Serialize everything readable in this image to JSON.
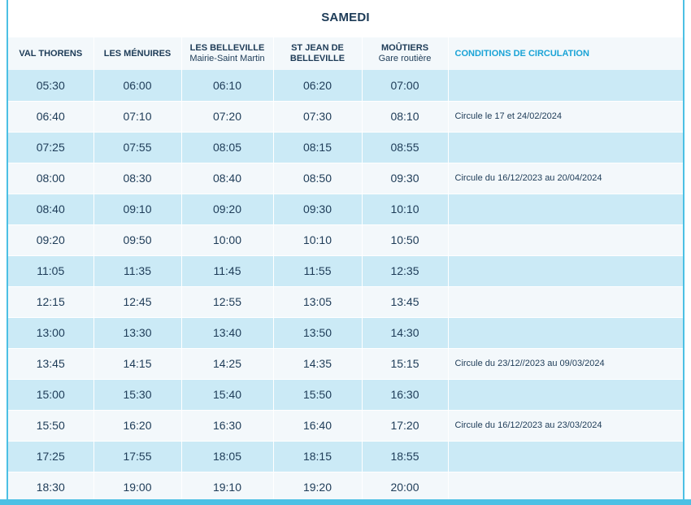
{
  "title": "SAMEDI",
  "headers": [
    {
      "label": "VAL THORENS",
      "sub": ""
    },
    {
      "label": "LES MÉNUIRES",
      "sub": ""
    },
    {
      "label": "LES BELLEVILLE",
      "sub": "Mairie-Saint Martin"
    },
    {
      "label": "ST JEAN DE BELLEVILLE",
      "sub": ""
    },
    {
      "label": "MOÛTIERS",
      "sub": "Gare routière"
    },
    {
      "label": "CONDITIONS DE CIRCULATION",
      "sub": ""
    }
  ],
  "rows": [
    {
      "times": [
        "05:30",
        "06:00",
        "06:10",
        "06:20",
        "07:00"
      ],
      "condition": ""
    },
    {
      "times": [
        "06:40",
        "07:10",
        "07:20",
        "07:30",
        "08:10"
      ],
      "condition": "Circule le 17 et 24/02/2024"
    },
    {
      "times": [
        "07:25",
        "07:55",
        "08:05",
        "08:15",
        "08:55"
      ],
      "condition": ""
    },
    {
      "times": [
        "08:00",
        "08:30",
        "08:40",
        "08:50",
        "09:30"
      ],
      "condition": "Circule du 16/12/2023 au 20/04/2024"
    },
    {
      "times": [
        "08:40",
        "09:10",
        "09:20",
        "09:30",
        "10:10"
      ],
      "condition": ""
    },
    {
      "times": [
        "09:20",
        "09:50",
        "10:00",
        "10:10",
        "10:50"
      ],
      "condition": ""
    },
    {
      "times": [
        "11:05",
        "11:35",
        "11:45",
        "11:55",
        "12:35"
      ],
      "condition": ""
    },
    {
      "times": [
        "12:15",
        "12:45",
        "12:55",
        "13:05",
        "13:45"
      ],
      "condition": ""
    },
    {
      "times": [
        "13:00",
        "13:30",
        "13:40",
        "13:50",
        "14:30"
      ],
      "condition": ""
    },
    {
      "times": [
        "13:45",
        "14:15",
        "14:25",
        "14:35",
        "15:15"
      ],
      "condition": "Circule du 23/12//2023 au 09/03/2024"
    },
    {
      "times": [
        "15:00",
        "15:30",
        "15:40",
        "15:50",
        "16:30"
      ],
      "condition": ""
    },
    {
      "times": [
        "15:50",
        "16:20",
        "16:30",
        "16:40",
        "17:20"
      ],
      "condition": "Circule du 16/12/2023 au 23/03/2024"
    },
    {
      "times": [
        "17:25",
        "17:55",
        "18:05",
        "18:15",
        "18:55"
      ],
      "condition": ""
    },
    {
      "times": [
        "18:30",
        "19:00",
        "19:10",
        "19:20",
        "20:00"
      ],
      "condition": ""
    }
  ],
  "colors": {
    "accent": "#4cc0e4",
    "row_shaded": "#cbeaf6",
    "row_light": "#f3f8fb",
    "text": "#1d3b57",
    "conditions_header": "#1aa3d6"
  }
}
